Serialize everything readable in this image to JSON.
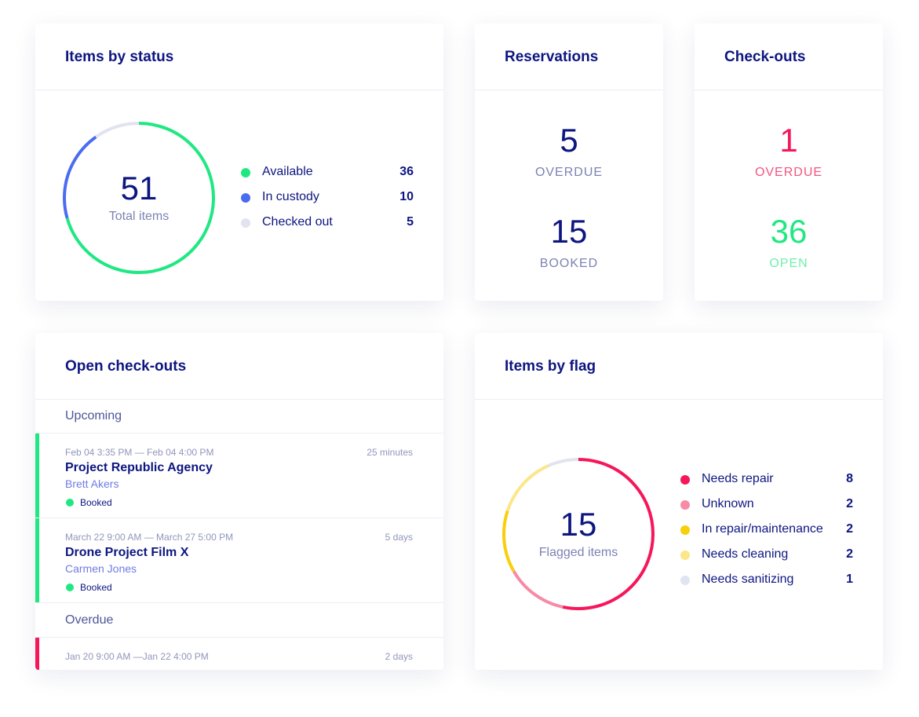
{
  "status_panel": {
    "title": "Items by status",
    "total": 51,
    "total_label": "Total items",
    "legend": [
      {
        "name": "Available",
        "value": 36,
        "color": "#1fe882"
      },
      {
        "name": "In custody",
        "value": 10,
        "color": "#4a6cf0"
      },
      {
        "name": "Checked out",
        "value": 5,
        "color": "#e1e4f0"
      }
    ]
  },
  "reservations": {
    "title": "Reservations",
    "stats": [
      {
        "value": 5,
        "label": "OVERDUE",
        "color": "#0d1680",
        "label_color": "#7c83b3"
      },
      {
        "value": 15,
        "label": "BOOKED",
        "color": "#0d1680",
        "label_color": "#7c83b3"
      }
    ]
  },
  "checkouts": {
    "title": "Check-outs",
    "stats": [
      {
        "value": 1,
        "label": "OVERDUE",
        "color": "#f5175a",
        "label_color": "#f2567f"
      },
      {
        "value": 36,
        "label": "OPEN",
        "color": "#1fe882",
        "label_color": "#6ef0a9"
      }
    ]
  },
  "open_checkouts": {
    "title": "Open check-outs",
    "groups": [
      {
        "name": "Upcoming",
        "color": "#1fe882",
        "items": [
          {
            "dates": "Feb 04 3:35 PM — Feb 04 4:00 PM",
            "duration": "25 minutes",
            "title": "Project Republic Agency",
            "person": "Brett Akers",
            "status": "Booked"
          },
          {
            "dates": "March 22 9:00 AM — March 27 5:00 PM",
            "duration": "5 days",
            "title": "Drone Project Film X",
            "person": "Carmen Jones",
            "status": "Booked"
          }
        ]
      },
      {
        "name": "Overdue",
        "color": "#f5175a",
        "items": [
          {
            "dates": "Jan 20 9:00 AM —Jan 22 4:00 PM",
            "duration": "2 days"
          }
        ]
      }
    ]
  },
  "flag_panel": {
    "title": "Items by flag",
    "total": 15,
    "total_label": "Flagged items",
    "legend": [
      {
        "name": "Needs repair",
        "value": 8,
        "color": "#f5175a"
      },
      {
        "name": "Unknown",
        "value": 2,
        "color": "#f78aa6"
      },
      {
        "name": "In repair/maintenance",
        "value": 2,
        "color": "#f9cf0b"
      },
      {
        "name": "Needs cleaning",
        "value": 2,
        "color": "#fbe78a"
      },
      {
        "name": "Needs sanitizing",
        "value": 1,
        "color": "#e1e4f0"
      }
    ]
  }
}
